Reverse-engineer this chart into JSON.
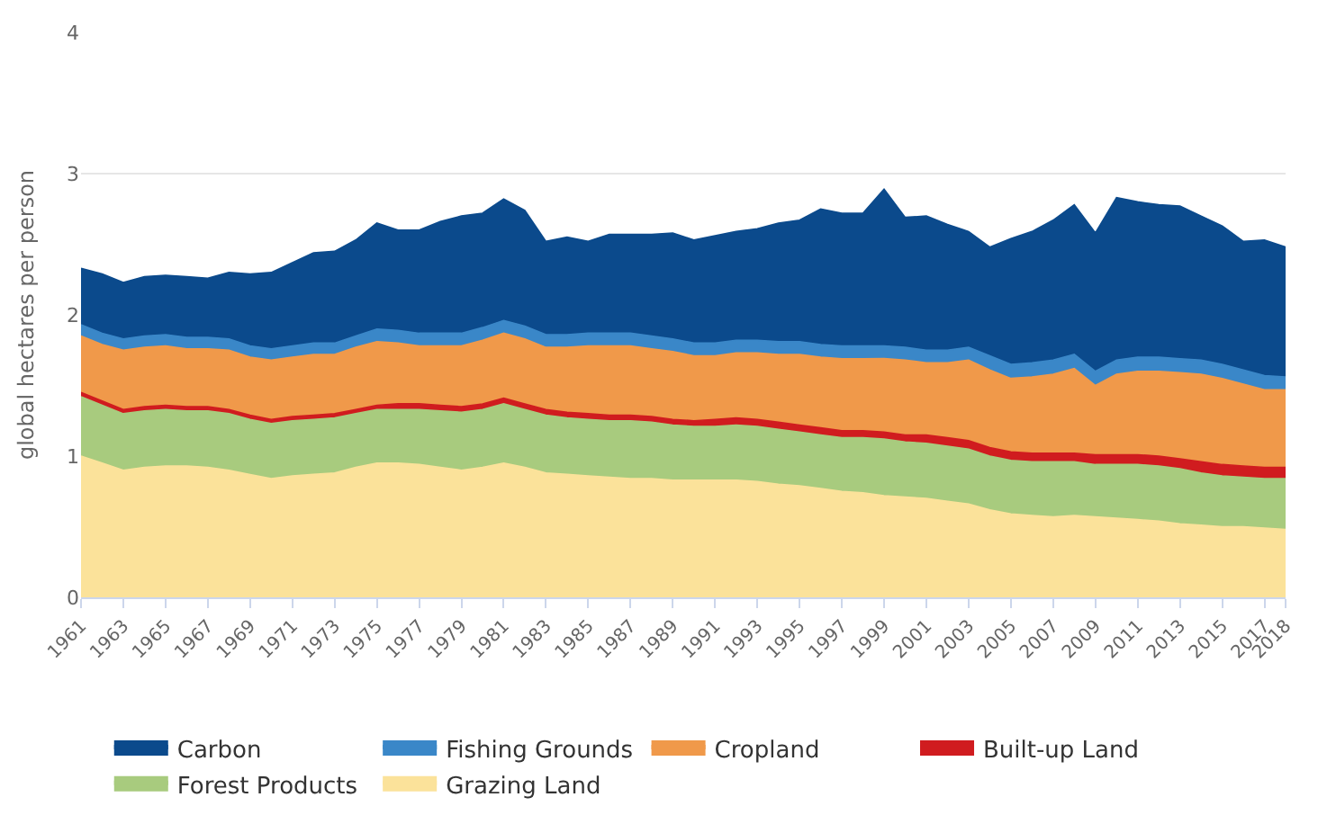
{
  "chart_data": {
    "type": "area",
    "stacked": true,
    "ylabel": "global hectares per person",
    "legend": "bottom",
    "grid": "y",
    "marker": "none",
    "x": [
      1961,
      1962,
      1963,
      1964,
      1965,
      1966,
      1967,
      1968,
      1969,
      1970,
      1971,
      1972,
      1973,
      1974,
      1975,
      1976,
      1977,
      1978,
      1979,
      1980,
      1981,
      1982,
      1983,
      1984,
      1985,
      1986,
      1987,
      1988,
      1989,
      1990,
      1991,
      1992,
      1993,
      1994,
      1995,
      1996,
      1997,
      1998,
      1999,
      2000,
      2001,
      2002,
      2003,
      2004,
      2005,
      2006,
      2007,
      2008,
      2009,
      2010,
      2011,
      2012,
      2013,
      2014,
      2015,
      2016,
      2017,
      2018
    ],
    "xlim": [
      1961,
      2018
    ],
    "xticks": [
      1961,
      1963,
      1965,
      1967,
      1969,
      1971,
      1973,
      1975,
      1977,
      1979,
      1981,
      1983,
      1985,
      1987,
      1989,
      1991,
      1993,
      1995,
      1997,
      1999,
      2001,
      2003,
      2005,
      2007,
      2009,
      2011,
      2013,
      2015,
      2017,
      2018
    ],
    "ylim": [
      0,
      4
    ],
    "yticks": [
      0,
      1,
      2,
      3,
      4
    ],
    "series": [
      {
        "name": "Grazing Land",
        "color": "#fbe29a",
        "values": [
          1.0,
          0.95,
          0.9,
          0.92,
          0.93,
          0.93,
          0.92,
          0.9,
          0.87,
          0.84,
          0.86,
          0.87,
          0.88,
          0.92,
          0.95,
          0.95,
          0.94,
          0.92,
          0.9,
          0.92,
          0.95,
          0.92,
          0.88,
          0.87,
          0.86,
          0.85,
          0.84,
          0.84,
          0.83,
          0.83,
          0.83,
          0.83,
          0.82,
          0.8,
          0.79,
          0.77,
          0.75,
          0.74,
          0.72,
          0.71,
          0.7,
          0.68,
          0.66,
          0.62,
          0.59,
          0.58,
          0.57,
          0.58,
          0.57,
          0.56,
          0.55,
          0.54,
          0.52,
          0.51,
          0.5,
          0.5,
          0.49,
          0.48
        ]
      },
      {
        "name": "Forest Products",
        "color": "#a8cb7e",
        "values": [
          0.42,
          0.41,
          0.4,
          0.4,
          0.4,
          0.39,
          0.4,
          0.4,
          0.39,
          0.39,
          0.39,
          0.39,
          0.39,
          0.38,
          0.38,
          0.38,
          0.39,
          0.4,
          0.41,
          0.41,
          0.42,
          0.41,
          0.41,
          0.4,
          0.4,
          0.4,
          0.41,
          0.4,
          0.39,
          0.38,
          0.38,
          0.39,
          0.39,
          0.39,
          0.38,
          0.38,
          0.38,
          0.39,
          0.4,
          0.39,
          0.39,
          0.39,
          0.39,
          0.38,
          0.38,
          0.38,
          0.39,
          0.38,
          0.37,
          0.38,
          0.39,
          0.39,
          0.39,
          0.37,
          0.36,
          0.35,
          0.35,
          0.36
        ]
      },
      {
        "name": "Built-up Land",
        "color": "#d01c1f",
        "values": [
          0.03,
          0.03,
          0.03,
          0.03,
          0.03,
          0.03,
          0.03,
          0.03,
          0.03,
          0.03,
          0.03,
          0.03,
          0.03,
          0.03,
          0.03,
          0.04,
          0.04,
          0.04,
          0.04,
          0.04,
          0.04,
          0.04,
          0.04,
          0.04,
          0.04,
          0.04,
          0.04,
          0.04,
          0.04,
          0.04,
          0.05,
          0.05,
          0.05,
          0.05,
          0.05,
          0.05,
          0.05,
          0.05,
          0.05,
          0.05,
          0.06,
          0.06,
          0.06,
          0.06,
          0.06,
          0.06,
          0.06,
          0.06,
          0.07,
          0.07,
          0.07,
          0.07,
          0.07,
          0.08,
          0.08,
          0.08,
          0.08,
          0.08
        ]
      },
      {
        "name": "Cropland",
        "color": "#f0994a",
        "values": [
          0.4,
          0.4,
          0.42,
          0.42,
          0.42,
          0.41,
          0.41,
          0.42,
          0.41,
          0.42,
          0.42,
          0.43,
          0.42,
          0.44,
          0.45,
          0.43,
          0.41,
          0.42,
          0.43,
          0.45,
          0.46,
          0.46,
          0.44,
          0.46,
          0.48,
          0.49,
          0.49,
          0.48,
          0.48,
          0.46,
          0.45,
          0.46,
          0.47,
          0.48,
          0.5,
          0.5,
          0.51,
          0.51,
          0.52,
          0.53,
          0.51,
          0.53,
          0.57,
          0.55,
          0.52,
          0.54,
          0.56,
          0.6,
          0.49,
          0.57,
          0.59,
          0.6,
          0.61,
          0.62,
          0.61,
          0.58,
          0.55,
          0.55
        ]
      },
      {
        "name": "Fishing Grounds",
        "color": "#3a87c8",
        "values": [
          0.08,
          0.08,
          0.08,
          0.08,
          0.08,
          0.08,
          0.08,
          0.08,
          0.08,
          0.08,
          0.08,
          0.08,
          0.08,
          0.08,
          0.09,
          0.09,
          0.09,
          0.09,
          0.09,
          0.09,
          0.09,
          0.09,
          0.09,
          0.09,
          0.09,
          0.09,
          0.09,
          0.09,
          0.09,
          0.09,
          0.09,
          0.09,
          0.09,
          0.09,
          0.09,
          0.09,
          0.09,
          0.09,
          0.09,
          0.09,
          0.09,
          0.09,
          0.09,
          0.1,
          0.1,
          0.1,
          0.1,
          0.1,
          0.1,
          0.1,
          0.1,
          0.1,
          0.1,
          0.1,
          0.1,
          0.1,
          0.1,
          0.09
        ]
      },
      {
        "name": "Carbon",
        "color": "#0b4a8c",
        "values": [
          0.4,
          0.42,
          0.4,
          0.42,
          0.42,
          0.43,
          0.42,
          0.47,
          0.51,
          0.54,
          0.59,
          0.64,
          0.65,
          0.68,
          0.75,
          0.71,
          0.73,
          0.79,
          0.83,
          0.81,
          0.86,
          0.82,
          0.66,
          0.69,
          0.65,
          0.7,
          0.7,
          0.72,
          0.75,
          0.73,
          0.76,
          0.77,
          0.79,
          0.84,
          0.86,
          0.96,
          0.94,
          0.94,
          1.11,
          0.92,
          0.95,
          0.89,
          0.82,
          0.77,
          0.89,
          0.93,
          0.99,
          1.06,
          0.98,
          1.15,
          1.1,
          1.08,
          1.08,
          1.02,
          0.98,
          0.91,
          0.96,
          0.92
        ]
      }
    ]
  }
}
